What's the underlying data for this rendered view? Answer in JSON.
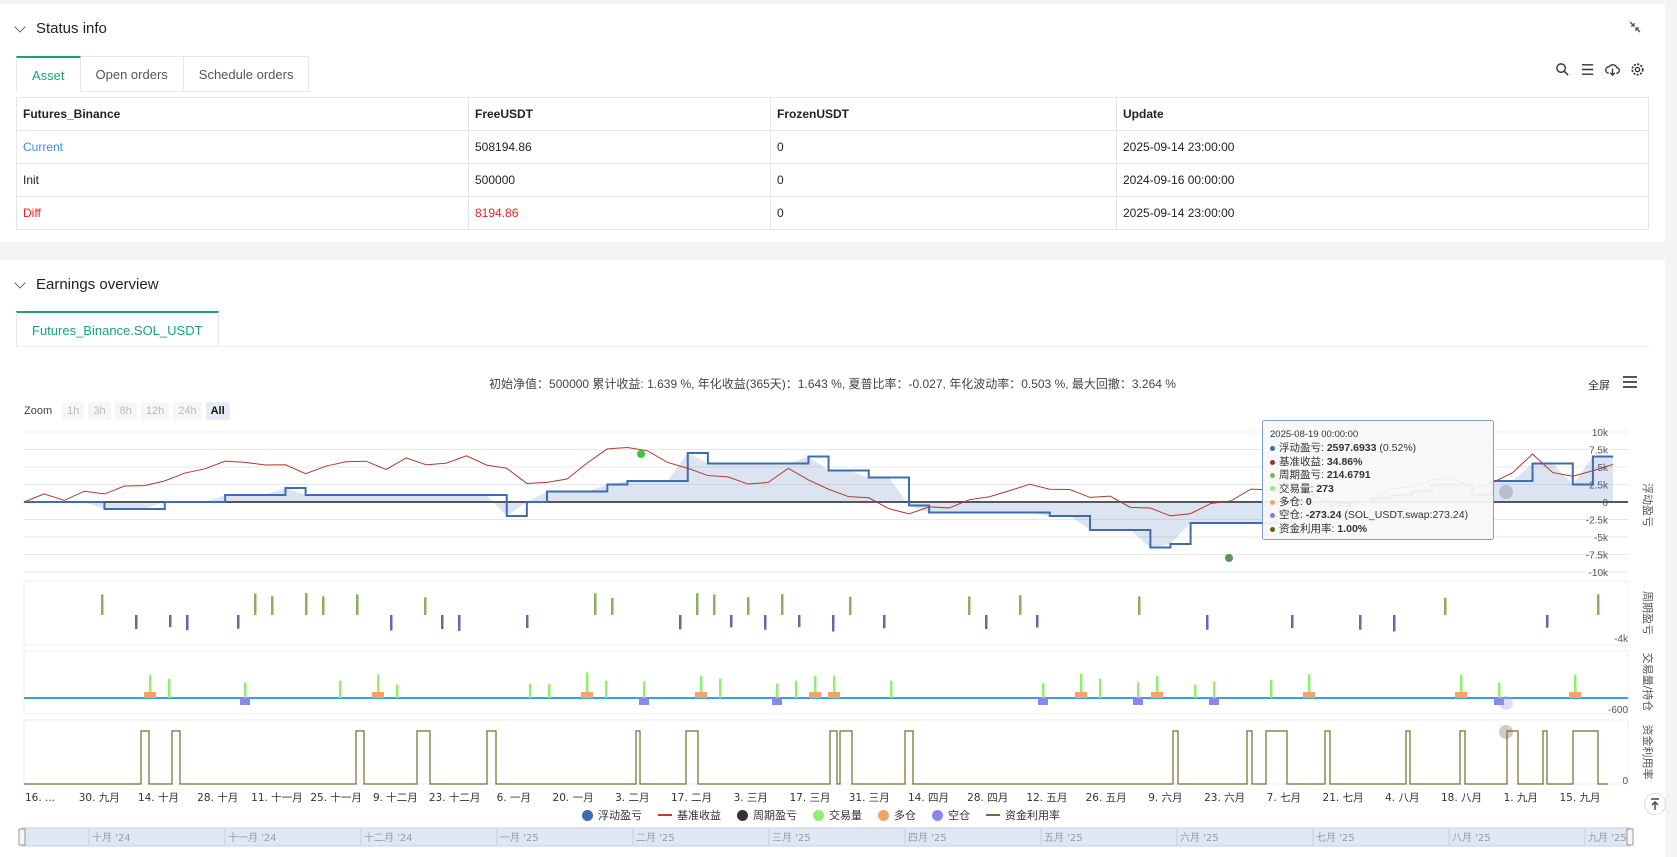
{
  "status": {
    "title": "Status info",
    "tabs": [
      "Asset",
      "Open orders",
      "Schedule orders"
    ],
    "table": {
      "headers": [
        "Futures_Binance",
        "FreeUSDT",
        "FrozenUSDT",
        "Update"
      ],
      "rows": [
        [
          "Current",
          "508194.86",
          "0",
          "2025-09-14 23:00:00"
        ],
        [
          "Init",
          "500000",
          "0",
          "2024-09-16 00:00:00"
        ],
        [
          "Diff",
          "8194.86",
          "0",
          "2025-09-14 23:00:00"
        ]
      ]
    }
  },
  "earnings": {
    "title": "Earnings overview",
    "tab": "Futures_Binance.SOL_USDT",
    "summary": "初始净值：500000 累计收益: 1.639 %, 年化收益(365天)：1.643 %, 夏普比率：-0.027, 年化波动率：0.503 %, 最大回撤：3.264 %",
    "fullscreen": "全屏",
    "zoom": {
      "label": "Zoom",
      "buttons": [
        "1h",
        "3h",
        "8h",
        "12h",
        "24h",
        "All"
      ],
      "active": "All"
    }
  },
  "tooltip": {
    "date": "2025-08-19 00:00:00",
    "rows": [
      {
        "label": "浮动盈亏: ",
        "value": "2597.6933",
        "extra": " (0.52%)",
        "color": "#3d6cb3"
      },
      {
        "label": "基准收益: ",
        "value": "34.86%",
        "extra": "",
        "color": "#a52a2a"
      },
      {
        "label": "周期盈亏: ",
        "value": "214.6791",
        "extra": "",
        "color": "#8bb05a"
      },
      {
        "label": "交易量: ",
        "value": "273",
        "extra": "",
        "color": "#90ee70"
      },
      {
        "label": "多仓: ",
        "value": "0",
        "extra": "",
        "color": "#f4a460"
      },
      {
        "label": "空仓: ",
        "value": "-273.24",
        "extra": " (SOL_USDT.swap:273.24)",
        "color": "#7b7bea"
      },
      {
        "label": "资金利用率: ",
        "value": "1.00%",
        "extra": "",
        "color": "#6b5d1b"
      }
    ]
  },
  "legend": [
    {
      "name": "浮动盈亏",
      "kind": "dot",
      "color": "#3d6cb3"
    },
    {
      "name": "基准收益",
      "kind": "line",
      "color": "#c0392b"
    },
    {
      "name": "周期盈亏",
      "kind": "dot",
      "color": "#333333"
    },
    {
      "name": "交易量",
      "kind": "dot",
      "color": "#90ee70"
    },
    {
      "name": "多仓",
      "kind": "dot",
      "color": "#f4a460"
    },
    {
      "name": "空仓",
      "kind": "dot",
      "color": "#8888ee"
    },
    {
      "name": "资金利用率",
      "kind": "line",
      "color": "#7a6a2a"
    }
  ],
  "chart_data": {
    "type": "line",
    "y_axis_right_main": [
      "10k",
      "7.5k",
      "5k",
      "2.5k",
      "0",
      "-2.5k",
      "-5k",
      "-7.5k",
      "-10k"
    ],
    "ylim_main": [
      -10000,
      10000
    ],
    "sub_axis_labels": {
      "周期盈亏": "-4k",
      "交易量/持仓": "-600",
      "资金利用率": "0"
    },
    "panel_titles": [
      "浮动盈亏",
      "周期盈亏",
      "交易量/持仓",
      "资金利用率"
    ],
    "x_ticks": [
      "16. ...",
      "30. 九月",
      "14. 十月",
      "28. 十月",
      "11. 十一月",
      "25. 十一月",
      "9. 十二月",
      "23. 十二月",
      "6. 一月",
      "20. 一月",
      "3. 二月",
      "17. 二月",
      "3. 三月",
      "17. 三月",
      "31. 三月",
      "14. 四月",
      "28. 四月",
      "12. 五月",
      "26. 五月",
      "9. 六月",
      "23. 六月",
      "7. 七月",
      "21. 七月",
      "4. 八月",
      "18. 八月",
      "1. 九月",
      "15. 九月"
    ],
    "navigator_ticks": [
      "十月 '24",
      "十一月 '24",
      "十二月 '24",
      "一月 '25",
      "二月 '25",
      "三月 '25",
      "四月 '25",
      "五月 '25",
      "六月 '25",
      "七月 '25",
      "八月 '25",
      "九月 '25"
    ],
    "floating_pnl": [
      0,
      0,
      0,
      0,
      -1000,
      -1000,
      -1000,
      0,
      0,
      0,
      1000,
      1000,
      1000,
      2000,
      1000,
      1000,
      1000,
      1000,
      1000,
      1000,
      1000,
      1000,
      1000,
      1000,
      -2000,
      0,
      1500,
      1500,
      1500,
      2500,
      3000,
      3000,
      3000,
      7000,
      5500,
      5500,
      5500,
      5500,
      5500,
      6500,
      4500,
      4500,
      3500,
      3500,
      -500,
      -1500,
      -1500,
      -1500,
      -1500,
      -1500,
      -1500,
      -2000,
      -2000,
      -4000,
      -4000,
      -4000,
      -6500,
      -6000,
      -3000,
      -3000,
      -3000,
      -3000,
      -3000,
      -2000,
      -1500,
      -500,
      0,
      500,
      1000,
      1500,
      2500,
      2500,
      1000,
      3000,
      3000,
      5500,
      5500,
      2500,
      6500,
      6500
    ],
    "benchmark": [
      0,
      1000,
      500,
      1200,
      1500,
      2000,
      2500,
      3000,
      4000,
      5000,
      5500,
      6000,
      5000,
      5500,
      4000,
      5000,
      6000,
      5500,
      5000,
      6000,
      5500,
      5500,
      6500,
      5500,
      4500,
      3000,
      2500,
      3500,
      5500,
      7500,
      8000,
      7000,
      6000,
      4500,
      4000,
      3500,
      2500,
      3000,
      4500,
      3500,
      1500,
      1000,
      500,
      -1000,
      -1500,
      -1000,
      -500,
      0,
      1000,
      1500,
      2500,
      2000,
      1500,
      1000,
      500,
      -500,
      -1000,
      -2000,
      -1500,
      -500,
      500,
      1500,
      2000,
      1500,
      1000,
      0,
      -500,
      500,
      1500,
      2500,
      3000,
      3500,
      2000,
      2500,
      4500,
      6500,
      4500,
      3500,
      4500,
      5500
    ],
    "utilization_markers": 24
  }
}
